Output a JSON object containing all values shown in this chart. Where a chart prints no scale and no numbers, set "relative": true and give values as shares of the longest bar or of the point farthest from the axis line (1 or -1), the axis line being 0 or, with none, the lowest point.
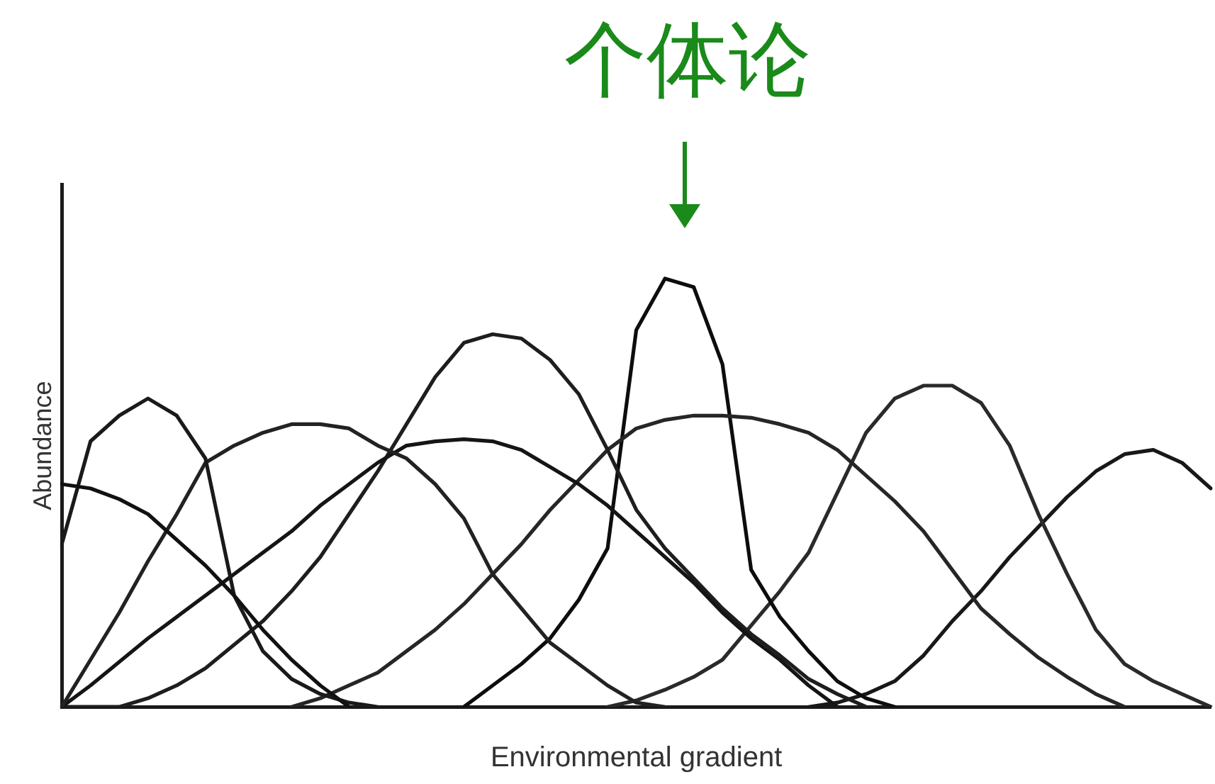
{
  "chart_data": {
    "type": "line",
    "title": "个体论",
    "xlabel": "Environmental gradient",
    "ylabel": "Abundance",
    "relative": true,
    "legend": false,
    "marker": "none",
    "line_style": "solid",
    "grid": false,
    "categories": [
      null,
      null,
      null,
      null,
      null,
      null,
      null,
      null,
      null,
      null,
      null,
      null,
      null,
      null,
      null,
      null,
      null,
      null,
      null,
      null,
      null,
      null,
      null,
      null,
      null,
      null,
      null,
      null,
      null,
      null,
      null,
      null,
      null,
      null,
      null,
      null,
      null,
      null,
      null,
      null,
      null
    ],
    "series": [
      {
        "color": "#111111",
        "values": [
          0.52,
          0.51,
          0.485,
          0.45,
          0.39,
          0.33,
          0.26,
          0.18,
          0.11,
          0.05,
          0,
          null,
          null,
          null,
          null,
          null,
          null,
          null,
          null,
          null,
          null,
          null,
          null,
          null,
          null,
          null,
          null,
          null,
          null,
          null,
          null,
          null,
          null,
          null,
          null,
          null,
          null,
          null,
          null,
          null,
          null
        ]
      },
      {
        "color": "#1a1a1a",
        "values": [
          0.38,
          0.62,
          0.68,
          0.72,
          0.68,
          0.58,
          0.26,
          0.13,
          0.065,
          0.03,
          0.01,
          0,
          null,
          null,
          null,
          null,
          null,
          null,
          null,
          null,
          null,
          null,
          null,
          null,
          null,
          null,
          null,
          null,
          null,
          null,
          null,
          null,
          null,
          null,
          null,
          null,
          null,
          null,
          null,
          null,
          null
        ]
      },
      {
        "color": "#222222",
        "values": [
          0,
          0.11,
          0.22,
          0.34,
          0.45,
          0.57,
          0.61,
          0.64,
          0.66,
          0.66,
          0.65,
          0.61,
          0.58,
          0.52,
          0.44,
          0.31,
          0.23,
          0.15,
          0.1,
          0.05,
          0.01,
          0,
          null,
          null,
          null,
          null,
          null,
          null,
          null,
          null,
          null,
          null,
          null,
          null,
          null,
          null,
          null,
          null,
          null,
          null,
          null
        ]
      },
      {
        "color": "#151515",
        "values": [
          0,
          0.05,
          0.105,
          0.16,
          0.21,
          0.26,
          0.31,
          0.36,
          0.41,
          0.47,
          0.52,
          0.57,
          0.61,
          0.62,
          0.625,
          0.62,
          0.6,
          0.56,
          0.52,
          0.47,
          0.41,
          0.35,
          0.29,
          0.22,
          0.16,
          0.11,
          0.05,
          0,
          null,
          null,
          null,
          null,
          null,
          null,
          null,
          null,
          null,
          null,
          null,
          null,
          null
        ]
      },
      {
        "color": "#1e1e1e",
        "values": [
          0,
          0,
          0,
          0.02,
          0.05,
          0.09,
          0.145,
          0.2,
          0.27,
          0.35,
          0.45,
          0.55,
          0.66,
          0.77,
          0.85,
          0.87,
          0.86,
          0.81,
          0.73,
          0.6,
          0.46,
          0.37,
          0.3,
          0.23,
          0.17,
          0.12,
          0.065,
          0.03,
          0,
          null,
          null,
          null,
          null,
          null,
          null,
          null,
          null,
          null,
          null,
          null,
          null
        ]
      },
      {
        "color": "#262626",
        "values": [
          null,
          null,
          null,
          null,
          null,
          null,
          null,
          null,
          0,
          0.02,
          0.05,
          0.08,
          0.13,
          0.18,
          0.24,
          0.31,
          0.38,
          0.46,
          0.53,
          0.6,
          0.65,
          0.67,
          0.68,
          0.68,
          0.675,
          0.66,
          0.64,
          0.6,
          0.54,
          0.48,
          0.41,
          0.32,
          0.23,
          0.17,
          0.115,
          0.07,
          0.03,
          0,
          null,
          null,
          null
        ]
      },
      {
        "color": "#0d0d0d",
        "values": [
          null,
          null,
          null,
          null,
          null,
          null,
          null,
          null,
          null,
          null,
          null,
          null,
          null,
          null,
          0,
          0.05,
          0.1,
          0.16,
          0.25,
          0.37,
          0.88,
          1,
          0.98,
          0.8,
          0.32,
          0.21,
          0.13,
          0.06,
          0.02,
          0,
          null,
          null,
          null,
          null,
          null,
          null,
          null,
          null,
          null,
          null,
          null
        ]
      },
      {
        "color": "#2a2a2a",
        "values": [
          null,
          null,
          null,
          null,
          null,
          null,
          null,
          null,
          null,
          null,
          null,
          null,
          null,
          null,
          null,
          null,
          null,
          null,
          null,
          0,
          0.015,
          0.04,
          0.07,
          0.11,
          0.19,
          0.27,
          0.36,
          0.5,
          0.64,
          0.72,
          0.75,
          0.75,
          0.71,
          0.61,
          0.45,
          0.31,
          0.18,
          0.1,
          0.06,
          0.03,
          0
        ]
      },
      {
        "color": "#181818",
        "values": [
          null,
          null,
          null,
          null,
          null,
          null,
          null,
          null,
          null,
          null,
          null,
          null,
          null,
          null,
          null,
          null,
          null,
          null,
          null,
          null,
          null,
          null,
          null,
          null,
          null,
          null,
          0,
          0.01,
          0.03,
          0.06,
          0.12,
          0.2,
          0.27,
          0.35,
          0.42,
          0.49,
          0.55,
          0.59,
          0.6,
          0.57,
          0.51
        ]
      }
    ]
  }
}
